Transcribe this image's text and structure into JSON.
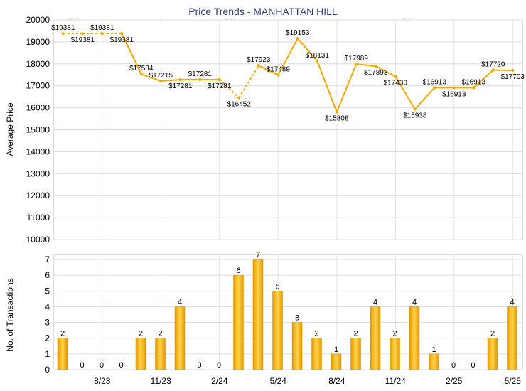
{
  "chart_data": [
    {
      "type": "line",
      "title": "Price Trends - MANHATTAN HILL",
      "ylabel": "Average Price",
      "ylim": [
        10000,
        20000
      ],
      "yticks": [
        10000,
        11000,
        12000,
        13000,
        14000,
        15000,
        16000,
        17000,
        18000,
        19000,
        20000
      ],
      "color": "#f5a800",
      "dashed_points": [
        0,
        1,
        2,
        3,
        8,
        9,
        10,
        23,
        24,
        25,
        27
      ],
      "series": [
        {
          "values": [
            19381,
            19381,
            19381,
            19381,
            17534,
            17215,
            17281,
            17281,
            17281,
            16452,
            17923,
            17489,
            19153,
            18131,
            15808,
            17989,
            17893,
            17430,
            15938,
            16913,
            16913,
            16913,
            17720,
            17703
          ],
          "labels": [
            "$19381",
            "$19381",
            "$19381",
            "$19381",
            "$17534",
            "$17215",
            "$17281",
            "$17281",
            "$17281",
            "$16452",
            "$17923",
            "$17489",
            "$19153",
            "$18131",
            "$15808",
            "$17989",
            "$17893",
            "$17430",
            "$15938",
            "$16913",
            "$16913",
            "$16913",
            "$17720",
            "$17703"
          ]
        }
      ]
    },
    {
      "type": "bar",
      "ylabel": "No. of Transactions",
      "ylim": [
        0,
        7
      ],
      "yticks": [
        0,
        1,
        2,
        3,
        4,
        5,
        6,
        7
      ],
      "x_tick_labels": [
        "8/23",
        "11/23",
        "2/24",
        "5/24",
        "8/24",
        "11/24",
        "2/25",
        "5/25"
      ],
      "colors": [
        "#f0a000",
        "#ffd24a"
      ],
      "series": [
        {
          "values": [
            2,
            0,
            0,
            0,
            2,
            2,
            4,
            0,
            0,
            6,
            7,
            5,
            3,
            2,
            1,
            2,
            4,
            2,
            4,
            1,
            0,
            0,
            2,
            4
          ]
        }
      ]
    }
  ],
  "watermark": "科一"
}
